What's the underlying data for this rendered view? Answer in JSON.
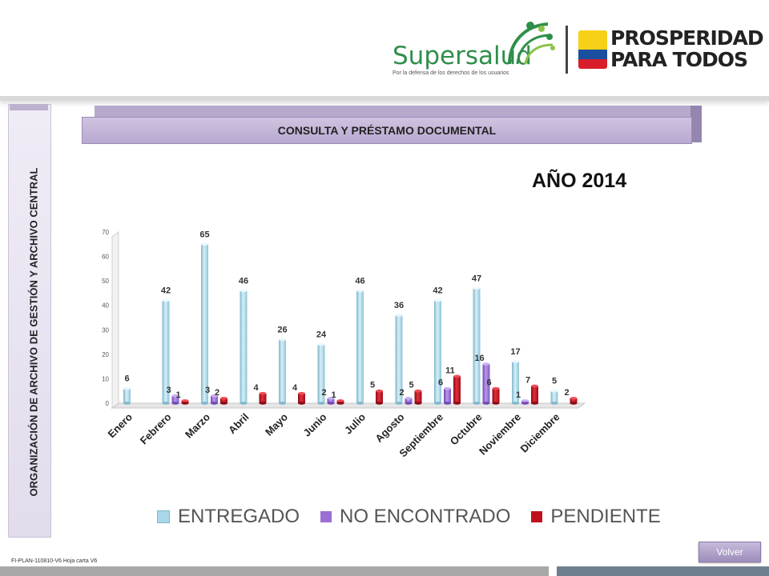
{
  "header": {
    "logo_name": "Supersalud",
    "logo_tagline": "Por la defensa de los derechos de los usuarios",
    "slogan_line1": "PROSPERIDAD",
    "slogan_line2": "PARA TODOS"
  },
  "sidebar": {
    "title": "ORGANIZACIÓN DE ARCHIVO DE GESTIÓN Y ARCHIVO CENTRAL"
  },
  "banner": {
    "title": "CONSULTA  Y PRÉSTAMO DOCUMENTAL"
  },
  "year_label": "AÑO 2014",
  "footer": {
    "code": "FI-PLAN-110810-V6 Hoja carta V6",
    "back_button": "Volver"
  },
  "colors": {
    "entregado": "#a9d8ea",
    "no_encontrado": "#9b6fd4",
    "pendiente": "#c0101c"
  },
  "chart_data": {
    "type": "bar",
    "title": "AÑO 2014",
    "categories": [
      "Enero",
      "Febrero",
      "Marzo",
      "Abril",
      "Mayo",
      "Junio",
      "Julio",
      "Agosto",
      "Septiembre",
      "Octubre",
      "Noviembre",
      "Diciembre"
    ],
    "series": [
      {
        "name": "ENTREGADO",
        "values": [
          6,
          42,
          65,
          46,
          26,
          24,
          46,
          36,
          42,
          47,
          17,
          5
        ],
        "labels": [
          "6",
          "42",
          "65",
          "46",
          "26",
          "24",
          "46",
          "36",
          "42",
          "47",
          "17",
          "5"
        ]
      },
      {
        "name": "NO ENCONTRADO",
        "values": [
          0,
          3,
          3,
          0,
          0,
          2,
          0,
          2,
          6,
          16,
          1,
          0
        ],
        "labels": [
          "",
          "3",
          "3",
          "",
          "",
          "2",
          "",
          "2",
          "6",
          "16",
          "1",
          ""
        ]
      },
      {
        "name": "PENDIENTE",
        "values": [
          0,
          1,
          2,
          4,
          4,
          1,
          5,
          5,
          11,
          6,
          7,
          2
        ],
        "labels": [
          "",
          "1",
          "2",
          "4",
          "4",
          "1",
          "5",
          "5",
          "11",
          "6",
          "7",
          "2"
        ]
      }
    ],
    "yticks": [
      "0",
      "10",
      "20",
      "30",
      "40",
      "50",
      "60",
      "70"
    ],
    "ylim": [
      0,
      70
    ],
    "legend": "bottom",
    "grid": false
  }
}
